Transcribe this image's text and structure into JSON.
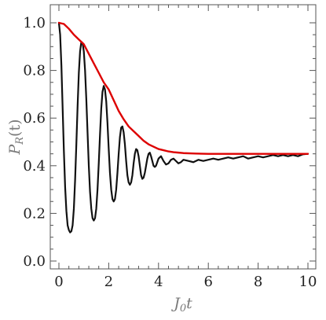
{
  "chart_data": {
    "type": "line",
    "title": "",
    "xlabel": {
      "main": "J",
      "sub": "0",
      "suffix": "t"
    },
    "ylabel": {
      "main": "P",
      "sub": "R",
      "suffix": "(t)"
    },
    "xlim": [
      0,
      10
    ],
    "ylim": [
      0,
      1.05
    ],
    "x_ticks": [
      "0",
      "2",
      "4",
      "6",
      "8",
      "10"
    ],
    "y_ticks": [
      "0.0",
      "0.2",
      "0.4",
      "0.6",
      "0.8",
      "1.0"
    ],
    "grid": false,
    "legend": "none",
    "colors": {
      "oscillation": "#111111",
      "envelope": "#dd0000",
      "frame": "#555555",
      "tick_text": "#222222",
      "axis_label": "#7a7a7a"
    },
    "series": [
      {
        "values": [
          [
            0.0,
            1.0
          ],
          [
            0.05,
            0.95
          ],
          [
            0.1,
            0.82
          ],
          [
            0.15,
            0.64
          ],
          [
            0.2,
            0.46
          ],
          [
            0.25,
            0.31
          ],
          [
            0.3,
            0.21
          ],
          [
            0.35,
            0.15
          ],
          [
            0.4,
            0.13
          ],
          [
            0.45,
            0.12
          ],
          [
            0.5,
            0.125
          ],
          [
            0.55,
            0.15
          ],
          [
            0.6,
            0.22
          ],
          [
            0.65,
            0.34
          ],
          [
            0.7,
            0.49
          ],
          [
            0.75,
            0.65
          ],
          [
            0.8,
            0.79
          ],
          [
            0.85,
            0.88
          ],
          [
            0.9,
            0.92
          ],
          [
            0.95,
            0.915
          ],
          [
            1.0,
            0.88
          ],
          [
            1.05,
            0.8
          ],
          [
            1.1,
            0.68
          ],
          [
            1.15,
            0.54
          ],
          [
            1.2,
            0.4
          ],
          [
            1.25,
            0.29
          ],
          [
            1.3,
            0.22
          ],
          [
            1.35,
            0.18
          ],
          [
            1.4,
            0.17
          ],
          [
            1.45,
            0.18
          ],
          [
            1.5,
            0.22
          ],
          [
            1.55,
            0.3
          ],
          [
            1.6,
            0.41
          ],
          [
            1.65,
            0.53
          ],
          [
            1.7,
            0.64
          ],
          [
            1.75,
            0.71
          ],
          [
            1.8,
            0.735
          ],
          [
            1.85,
            0.72
          ],
          [
            1.9,
            0.67
          ],
          [
            1.95,
            0.58
          ],
          [
            2.0,
            0.47
          ],
          [
            2.05,
            0.37
          ],
          [
            2.1,
            0.3
          ],
          [
            2.15,
            0.26
          ],
          [
            2.2,
            0.25
          ],
          [
            2.25,
            0.26
          ],
          [
            2.3,
            0.3
          ],
          [
            2.35,
            0.37
          ],
          [
            2.4,
            0.45
          ],
          [
            2.45,
            0.52
          ],
          [
            2.5,
            0.56
          ],
          [
            2.55,
            0.565
          ],
          [
            2.6,
            0.54
          ],
          [
            2.65,
            0.49
          ],
          [
            2.7,
            0.42
          ],
          [
            2.75,
            0.36
          ],
          [
            2.8,
            0.33
          ],
          [
            2.85,
            0.32
          ],
          [
            2.9,
            0.33
          ],
          [
            2.95,
            0.36
          ],
          [
            3.0,
            0.41
          ],
          [
            3.05,
            0.45
          ],
          [
            3.1,
            0.47
          ],
          [
            3.15,
            0.465
          ],
          [
            3.2,
            0.44
          ],
          [
            3.25,
            0.4
          ],
          [
            3.3,
            0.36
          ],
          [
            3.35,
            0.345
          ],
          [
            3.4,
            0.35
          ],
          [
            3.45,
            0.37
          ],
          [
            3.5,
            0.4
          ],
          [
            3.55,
            0.43
          ],
          [
            3.6,
            0.45
          ],
          [
            3.65,
            0.455
          ],
          [
            3.7,
            0.44
          ],
          [
            3.75,
            0.42
          ],
          [
            3.8,
            0.4
          ],
          [
            3.85,
            0.395
          ],
          [
            3.9,
            0.4
          ],
          [
            3.95,
            0.415
          ],
          [
            4.0,
            0.43
          ],
          [
            4.1,
            0.44
          ],
          [
            4.2,
            0.42
          ],
          [
            4.3,
            0.405
          ],
          [
            4.4,
            0.41
          ],
          [
            4.5,
            0.425
          ],
          [
            4.6,
            0.43
          ],
          [
            4.7,
            0.42
          ],
          [
            4.8,
            0.41
          ],
          [
            4.9,
            0.415
          ],
          [
            5.0,
            0.425
          ],
          [
            5.2,
            0.42
          ],
          [
            5.4,
            0.415
          ],
          [
            5.6,
            0.425
          ],
          [
            5.8,
            0.42
          ],
          [
            6.0,
            0.425
          ],
          [
            6.2,
            0.43
          ],
          [
            6.4,
            0.425
          ],
          [
            6.6,
            0.43
          ],
          [
            6.8,
            0.435
          ],
          [
            7.0,
            0.43
          ],
          [
            7.2,
            0.435
          ],
          [
            7.4,
            0.44
          ],
          [
            7.6,
            0.43
          ],
          [
            7.8,
            0.435
          ],
          [
            8.0,
            0.44
          ],
          [
            8.2,
            0.435
          ],
          [
            8.4,
            0.44
          ],
          [
            8.6,
            0.445
          ],
          [
            8.8,
            0.44
          ],
          [
            9.0,
            0.445
          ],
          [
            9.2,
            0.44
          ],
          [
            9.4,
            0.445
          ],
          [
            9.6,
            0.44
          ],
          [
            9.8,
            0.448
          ],
          [
            10.0,
            0.45
          ]
        ]
      },
      {
        "values": [
          [
            0.0,
            1.0
          ],
          [
            0.2,
            0.995
          ],
          [
            0.4,
            0.975
          ],
          [
            0.6,
            0.95
          ],
          [
            0.8,
            0.93
          ],
          [
            1.0,
            0.91
          ],
          [
            1.2,
            0.87
          ],
          [
            1.4,
            0.83
          ],
          [
            1.6,
            0.79
          ],
          [
            1.8,
            0.75
          ],
          [
            2.0,
            0.72
          ],
          [
            2.2,
            0.675
          ],
          [
            2.4,
            0.63
          ],
          [
            2.6,
            0.595
          ],
          [
            2.8,
            0.565
          ],
          [
            3.0,
            0.545
          ],
          [
            3.2,
            0.525
          ],
          [
            3.4,
            0.505
          ],
          [
            3.6,
            0.49
          ],
          [
            3.8,
            0.48
          ],
          [
            4.0,
            0.47
          ],
          [
            4.2,
            0.465
          ],
          [
            4.4,
            0.46
          ],
          [
            4.6,
            0.457
          ],
          [
            4.8,
            0.455
          ],
          [
            5.0,
            0.453
          ],
          [
            5.5,
            0.451
          ],
          [
            6.0,
            0.45
          ],
          [
            7.0,
            0.45
          ],
          [
            8.0,
            0.45
          ],
          [
            9.0,
            0.45
          ],
          [
            10.0,
            0.45
          ]
        ]
      }
    ]
  }
}
